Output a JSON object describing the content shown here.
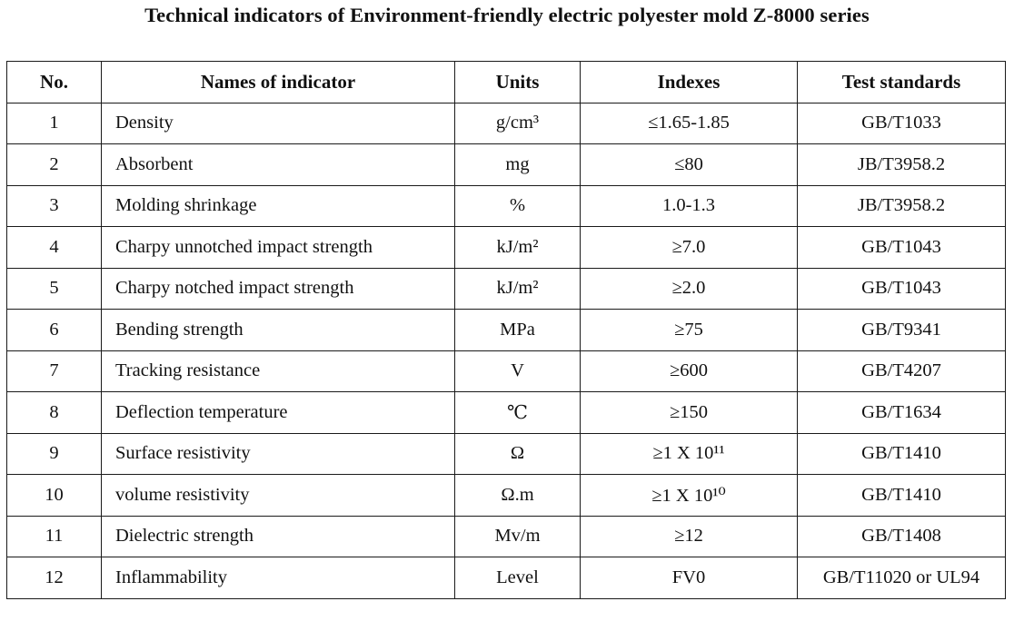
{
  "title": "Technical indicators of Environment-friendly electric polyester mold Z-8000 series",
  "table": {
    "headers": [
      "No.",
      "Names of indicator",
      "Units",
      "Indexes",
      "Test standards"
    ],
    "rows": [
      {
        "no": "1",
        "name": "Density",
        "units": "g/cm³",
        "index": "≤1.65-1.85",
        "standard": "GB/T1033"
      },
      {
        "no": "2",
        "name": "Absorbent",
        "units": "mg",
        "index": "≤80",
        "standard": "JB/T3958.2"
      },
      {
        "no": "3",
        "name": "Molding shrinkage",
        "units": "%",
        "index": "1.0-1.3",
        "standard": "JB/T3958.2"
      },
      {
        "no": "4",
        "name": "Charpy unnotched impact strength",
        "units": "kJ/m²",
        "index": "≥7.0",
        "standard": "GB/T1043"
      },
      {
        "no": "5",
        "name": "Charpy notched impact strength",
        "units": "kJ/m²",
        "index": "≥2.0",
        "standard": "GB/T1043"
      },
      {
        "no": "6",
        "name": "Bending strength",
        "units": "MPa",
        "index": "≥75",
        "standard": "GB/T9341"
      },
      {
        "no": "7",
        "name": "Tracking resistance",
        "units": "V",
        "index": "≥600",
        "standard": "GB/T4207"
      },
      {
        "no": "8",
        "name": "Deflection temperature",
        "units": "℃",
        "index": "≥150",
        "standard": "GB/T1634"
      },
      {
        "no": "9",
        "name": "Surface resistivity",
        "units": "Ω",
        "index": "≥1 X 10¹¹",
        "standard": "GB/T1410"
      },
      {
        "no": "10",
        "name": "volume resistivity",
        "units": "Ω.m",
        "index": "≥1 X 10¹⁰",
        "standard": "GB/T1410"
      },
      {
        "no": "11",
        "name": "Dielectric strength",
        "units": "Mv/m",
        "index": "≥12",
        "standard": "GB/T1408"
      },
      {
        "no": "12",
        "name": "Inflammability",
        "units": "Level",
        "index": "FV0",
        "standard": "GB/T11020 or UL94"
      }
    ]
  }
}
